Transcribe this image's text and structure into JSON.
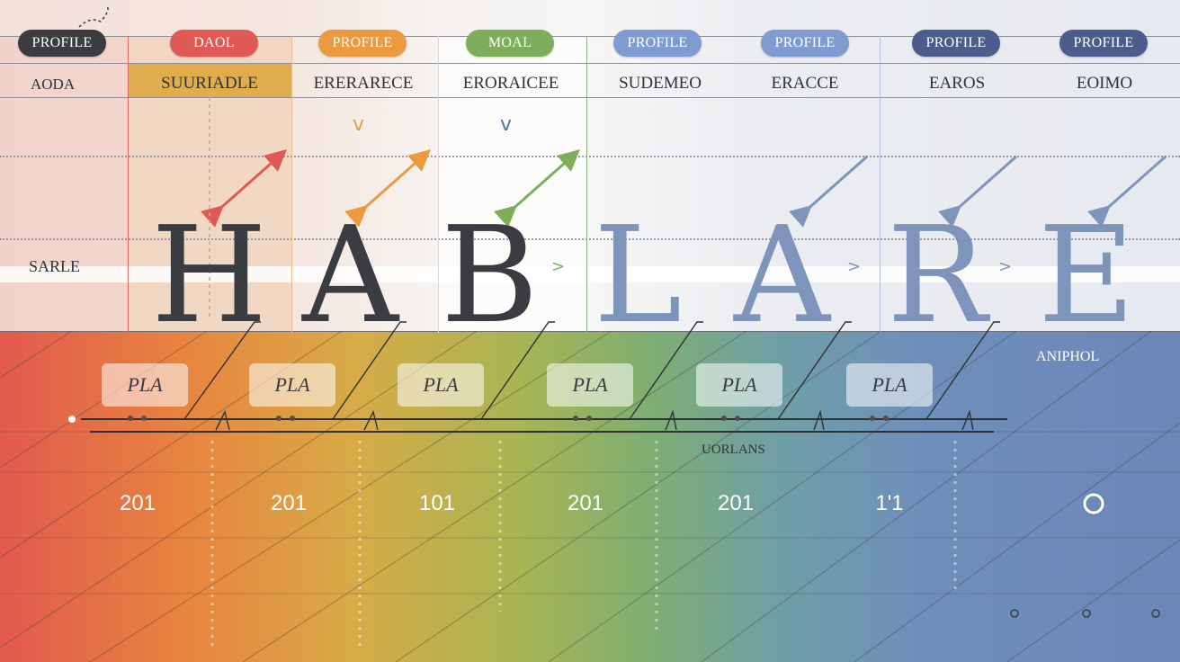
{
  "pills": [
    {
      "label": "PROFILE",
      "color": "#3b3c40"
    },
    {
      "label": "DAOL",
      "color": "#e05a55"
    },
    {
      "label": "PROFILE",
      "color": "#eb9a3f"
    },
    {
      "label": "MOAL",
      "color": "#7fae5a"
    },
    {
      "label": "PROFILE",
      "color": "#7f9bcf"
    },
    {
      "label": "PROFILE",
      "color": "#7f9bcf"
    },
    {
      "label": "PROFILE",
      "color": "#4c5c8c"
    },
    {
      "label": "PROFILE",
      "color": "#4c5c8c"
    }
  ],
  "row_label_top": "AODA",
  "headers": [
    "SUURIADLE",
    "ERERARECE",
    "ERORAICEE",
    "SUDEMEO",
    "ERACCE",
    "EAROS",
    "EOIMO"
  ],
  "row_label_mid": "SARLE",
  "letters": [
    {
      "char": "H",
      "color": "#3a3c42"
    },
    {
      "char": "A",
      "color": "#3a3c42"
    },
    {
      "char": "B",
      "color": "#3a3c42"
    },
    {
      "char": "L",
      "color": "#7f94bb"
    },
    {
      "char": "A",
      "color": "#7f94bb"
    },
    {
      "char": "R",
      "color": "#7f94bb"
    },
    {
      "char": "E",
      "color": "#7f94bb"
    }
  ],
  "pla_labels": [
    "PLA",
    "PLA",
    "PLA",
    "PLA",
    "PLA",
    "PLA"
  ],
  "timeline_label": "UORLANS",
  "corner_label": "ANIPHOL",
  "years": [
    "201",
    "201",
    "101",
    "201",
    "201",
    "1'1",
    "O"
  ],
  "colors": {
    "red": "#e05a55",
    "orange": "#eb9a3f",
    "green": "#7fae5a",
    "blue": "#7f94bb",
    "dark": "#3a3c42"
  }
}
